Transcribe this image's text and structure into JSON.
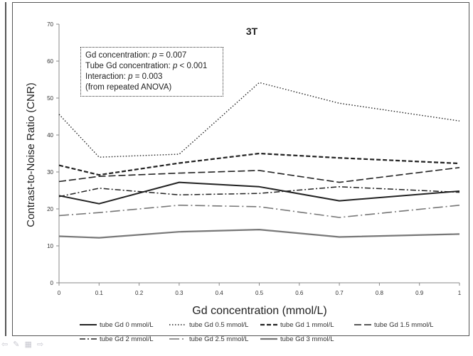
{
  "chart_data": {
    "type": "line",
    "title": "3T",
    "xlabel": "Gd concentration (mmol/L)",
    "ylabel": "Contrast-to-Noise Ratio (CNR)",
    "xlim": [
      0,
      1
    ],
    "ylim": [
      0,
      70
    ],
    "x_ticks": [
      0,
      0.1,
      0.2,
      0.3,
      0.4,
      0.5,
      0.6,
      0.7,
      0.8,
      0.9,
      1
    ],
    "x_tick_labels": [
      "0",
      "0.1",
      "0.2",
      "0.3",
      "0.4",
      "0.5",
      "0.6",
      "0.7",
      "0.8",
      "0.9",
      "1"
    ],
    "y_ticks": [
      0,
      10,
      20,
      30,
      40,
      50,
      60,
      70
    ],
    "y_tick_labels": [
      "0",
      "10",
      "20",
      "30",
      "40",
      "50",
      "60",
      "70"
    ],
    "x": [
      0,
      0.1,
      0.3,
      0.5,
      0.7,
      1
    ],
    "grid": false,
    "legend_position": "bottom",
    "series": [
      {
        "name": "tube Gd 0 mmol/L",
        "values": [
          23.6,
          21.4,
          27.2,
          26.0,
          22.2,
          24.8
        ],
        "color": "#222222",
        "style": "solid",
        "width": 2
      },
      {
        "name": "tube Gd 0.5 mmol/L",
        "values": [
          45.6,
          34.0,
          34.8,
          54.2,
          48.6,
          43.8
        ],
        "color": "#222222",
        "style": "dotted",
        "width": 1.4
      },
      {
        "name": "tube Gd 1 mmol/L",
        "values": [
          31.8,
          29.2,
          32.4,
          35.0,
          33.8,
          32.3
        ],
        "color": "#222222",
        "style": "shortdash",
        "width": 2.2
      },
      {
        "name": "tube Gd 1.5 mmol/L",
        "values": [
          27.4,
          28.8,
          29.7,
          30.4,
          27.2,
          31.2
        ],
        "color": "#222222",
        "style": "longdash",
        "width": 1.6
      },
      {
        "name": "tube Gd 2 mmol/L",
        "values": [
          23.3,
          25.6,
          23.8,
          24.2,
          26.0,
          24.5
        ],
        "color": "#222222",
        "style": "dashdot",
        "width": 1.5
      },
      {
        "name": "tube Gd 2.5 mmol/L",
        "values": [
          18.2,
          19.0,
          21.0,
          20.6,
          17.7,
          21.0
        ],
        "color": "#777777",
        "style": "longdashdot",
        "width": 1.6
      },
      {
        "name": "tube Gd 3 mmol/L",
        "values": [
          12.6,
          12.2,
          13.8,
          14.4,
          12.4,
          13.2
        ],
        "color": "#777777",
        "style": "solid",
        "width": 2.2
      }
    ]
  },
  "annotation": {
    "line1_text": "Gd concentration: ",
    "line1_p": "p",
    "line1_value": " = 0.007",
    "line2_text": "Tube Gd concentration: ",
    "line2_p": "p",
    "line2_value": " < 0.001",
    "line3_text": "Interaction: ",
    "line3_p": "p",
    "line3_value": " = 0.003",
    "line4_text": "(from repeated ANOVA)"
  },
  "nav": {
    "icons_text": "⇦ ✎ ▦ ⇨"
  }
}
